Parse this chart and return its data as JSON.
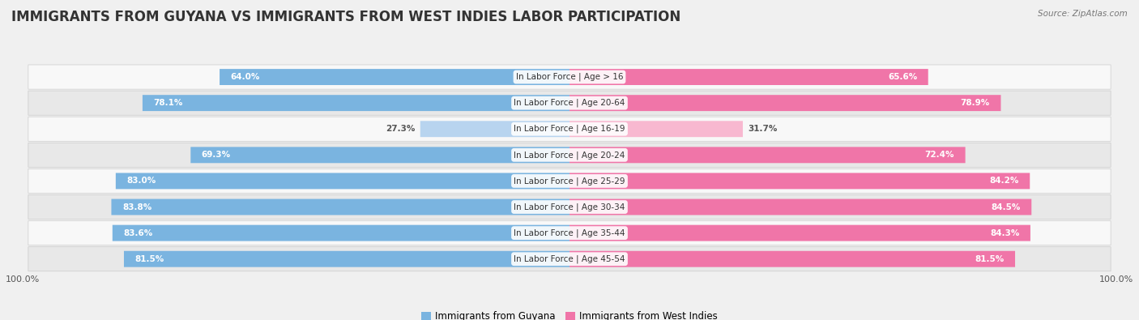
{
  "title": "IMMIGRANTS FROM GUYANA VS IMMIGRANTS FROM WEST INDIES LABOR PARTICIPATION",
  "source": "Source: ZipAtlas.com",
  "categories": [
    "In Labor Force | Age > 16",
    "In Labor Force | Age 20-64",
    "In Labor Force | Age 16-19",
    "In Labor Force | Age 20-24",
    "In Labor Force | Age 25-29",
    "In Labor Force | Age 30-34",
    "In Labor Force | Age 35-44",
    "In Labor Force | Age 45-54"
  ],
  "guyana_values": [
    64.0,
    78.1,
    27.3,
    69.3,
    83.0,
    83.8,
    83.6,
    81.5
  ],
  "west_indies_values": [
    65.6,
    78.9,
    31.7,
    72.4,
    84.2,
    84.5,
    84.3,
    81.5
  ],
  "guyana_color": "#7ab4e0",
  "west_indies_color": "#f075a8",
  "guyana_color_light": "#b8d4ef",
  "west_indies_color_light": "#f8b8d0",
  "bar_height": 0.62,
  "max_val": 100.0,
  "bg_color": "#f0f0f0",
  "row_bg_light": "#f8f8f8",
  "row_bg_dark": "#e8e8e8",
  "legend_guyana": "Immigrants from Guyana",
  "legend_west_indies": "Immigrants from West Indies",
  "title_fontsize": 12,
  "cat_fontsize": 7.5,
  "value_fontsize": 7.5,
  "axis_label_fontsize": 8.0,
  "legend_fontsize": 8.5
}
